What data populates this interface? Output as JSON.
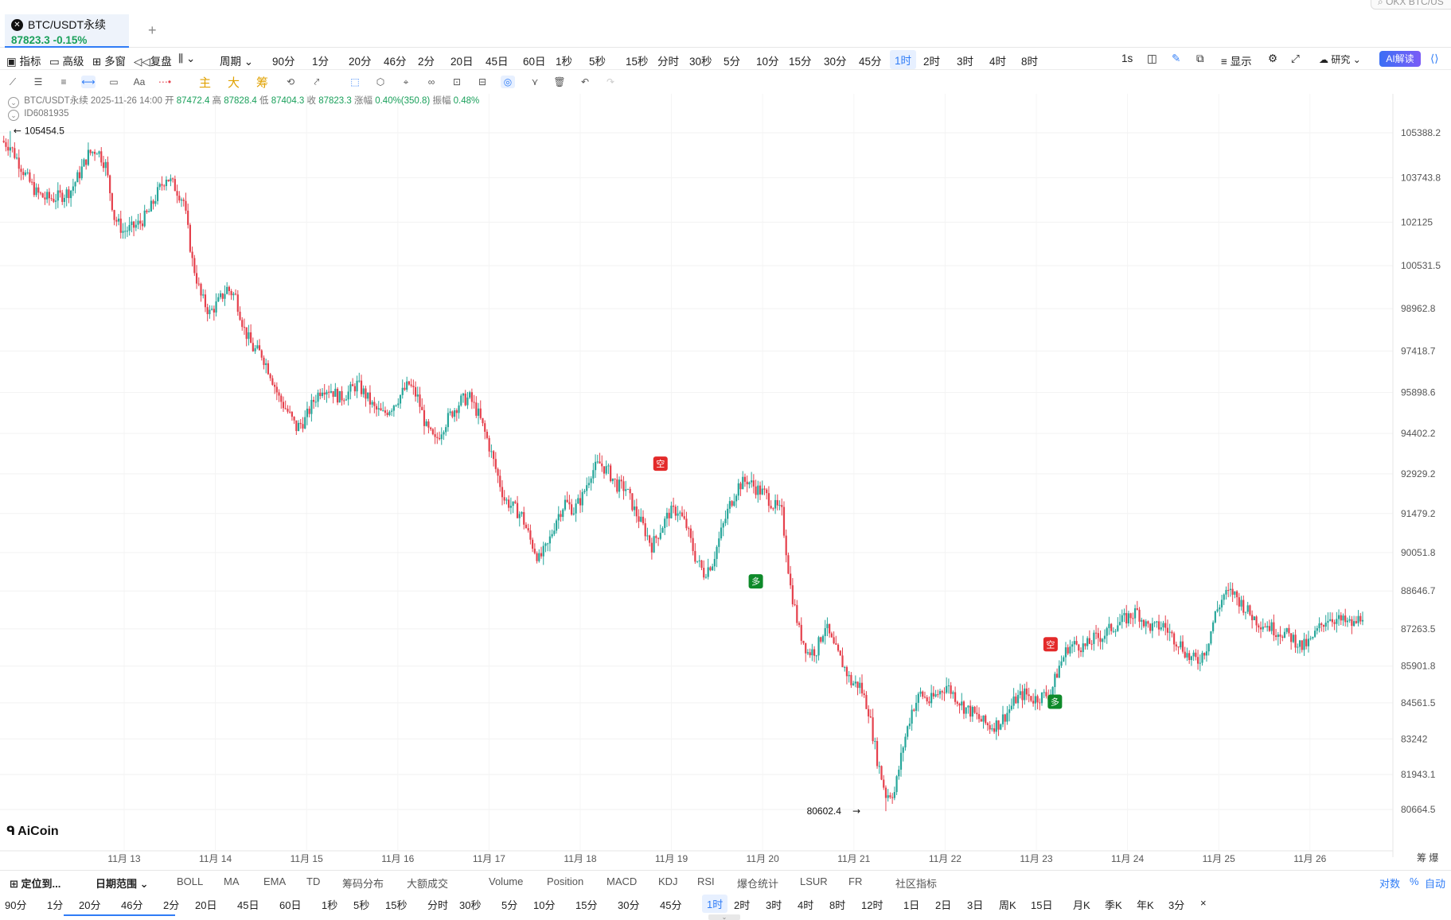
{
  "tab": {
    "symbol": "BTC/USDT永续",
    "price": "87823.3",
    "change": "-0.15%",
    "add": "+",
    "search_placeholder": "OKX BTC/US"
  },
  "toolbar1": {
    "items": [
      {
        "label": "指标"
      },
      {
        "label": "高级"
      },
      {
        "label": "多窗"
      },
      {
        "label": "复盘"
      },
      {
        "label": "周期"
      },
      {
        "label": "90分"
      },
      {
        "label": "1分"
      },
      {
        "label": "20分"
      },
      {
        "label": "46分"
      },
      {
        "label": "2分"
      },
      {
        "label": "20日"
      },
      {
        "label": "45日"
      },
      {
        "label": "60日"
      },
      {
        "label": "1秒"
      },
      {
        "label": "5秒"
      },
      {
        "label": "15秒"
      },
      {
        "label": "分时"
      },
      {
        "label": "30秒"
      },
      {
        "label": "5分"
      },
      {
        "label": "10分"
      },
      {
        "label": "15分"
      },
      {
        "label": "30分"
      },
      {
        "label": "45分"
      },
      {
        "label": "1时"
      },
      {
        "label": "2时"
      },
      {
        "label": "3时"
      },
      {
        "label": "4时"
      },
      {
        "label": "8时"
      }
    ],
    "active": "1时",
    "right": {
      "speed": "1s",
      "display": "显示",
      "research": "研究",
      "ai": "AI解读"
    }
  },
  "toolbar2": {
    "highlight": [
      "主",
      "大",
      "筹"
    ]
  },
  "ohlc": {
    "symbol": "BTC/USDT永续",
    "time": "2025-11-26 14:00",
    "open_label": "开",
    "open": "87472.4",
    "high_label": "高",
    "high": "87828.4",
    "low_label": "低",
    "low": "87404.3",
    "close_label": "收",
    "close": "87823.3",
    "chg_label": "涨幅",
    "chg": "0.40%(350.8)",
    "amp_label": "振幅",
    "amp": "0.48%",
    "id": "ID6081935"
  },
  "chart_data": {
    "type": "candlestick",
    "y_ticks": [
      105388.2,
      103743.8,
      102125.0,
      100531.5,
      98962.8,
      97418.7,
      95898.6,
      94402.2,
      92929.2,
      91479.2,
      90051.8,
      88646.7,
      87263.5,
      85901.8,
      84561.5,
      83242.0,
      81943.1,
      80664.5
    ],
    "x_ticks": [
      "11月 13",
      "11月 14",
      "11月 15",
      "11月 16",
      "11月 17",
      "11月 18",
      "11月 19",
      "11月 20",
      "11月 21",
      "11月 22",
      "11月 23",
      "11月 24",
      "11月 25",
      "11月 26"
    ],
    "high_label": "105454.5",
    "low_label": "80602.4",
    "high_value": 105454.5,
    "low_value": 80602.4,
    "close_path": [
      [
        0,
        105100
      ],
      [
        4,
        104900
      ],
      [
        8,
        104300
      ],
      [
        12,
        103700
      ],
      [
        16,
        103200
      ],
      [
        20,
        103000
      ],
      [
        24,
        103000
      ],
      [
        28,
        103100
      ],
      [
        32,
        103300
      ],
      [
        36,
        103900
      ],
      [
        40,
        104600
      ],
      [
        44,
        104800
      ],
      [
        48,
        104200
      ],
      [
        52,
        102300
      ],
      [
        56,
        101800
      ],
      [
        60,
        101900
      ],
      [
        64,
        102100
      ],
      [
        68,
        102500
      ],
      [
        72,
        103200
      ],
      [
        76,
        103800
      ],
      [
        80,
        103400
      ],
      [
        84,
        102900
      ],
      [
        88,
        100700
      ],
      [
        92,
        99400
      ],
      [
        96,
        98800
      ],
      [
        100,
        99200
      ],
      [
        104,
        99700
      ],
      [
        108,
        99400
      ],
      [
        112,
        98200
      ],
      [
        116,
        97500
      ],
      [
        120,
        97300
      ],
      [
        124,
        96600
      ],
      [
        128,
        95700
      ],
      [
        132,
        95200
      ],
      [
        136,
        94600
      ],
      [
        140,
        94900
      ],
      [
        144,
        95600
      ],
      [
        148,
        96100
      ],
      [
        152,
        96000
      ],
      [
        156,
        95700
      ],
      [
        160,
        95900
      ],
      [
        164,
        96200
      ],
      [
        168,
        95800
      ],
      [
        172,
        95300
      ],
      [
        176,
        95100
      ],
      [
        180,
        95400
      ],
      [
        184,
        95800
      ],
      [
        188,
        96200
      ],
      [
        192,
        95700
      ],
      [
        196,
        94600
      ],
      [
        200,
        94100
      ],
      [
        204,
        94700
      ],
      [
        208,
        95200
      ],
      [
        212,
        95600
      ],
      [
        216,
        95700
      ],
      [
        220,
        95100
      ],
      [
        224,
        94200
      ],
      [
        228,
        93100
      ],
      [
        232,
        92000
      ],
      [
        236,
        91700
      ],
      [
        240,
        91400
      ],
      [
        244,
        90500
      ],
      [
        248,
        89800
      ],
      [
        252,
        90300
      ],
      [
        256,
        91300
      ],
      [
        260,
        91900
      ],
      [
        264,
        91600
      ],
      [
        268,
        92100
      ],
      [
        272,
        93000
      ],
      [
        276,
        93300
      ],
      [
        280,
        93000
      ],
      [
        284,
        92500
      ],
      [
        288,
        92400
      ],
      [
        292,
        91600
      ],
      [
        296,
        91000
      ],
      [
        300,
        90300
      ],
      [
        304,
        90900
      ],
      [
        308,
        91500
      ],
      [
        312,
        91600
      ],
      [
        316,
        91000
      ],
      [
        320,
        89900
      ],
      [
        324,
        89300
      ],
      [
        328,
        89700
      ],
      [
        332,
        90800
      ],
      [
        336,
        91800
      ],
      [
        340,
        92500
      ],
      [
        344,
        92700
      ],
      [
        348,
        92400
      ],
      [
        352,
        92200
      ],
      [
        356,
        91800
      ],
      [
        360,
        91500
      ],
      [
        364,
        88800
      ],
      [
        368,
        87200
      ],
      [
        372,
        86400
      ],
      [
        376,
        86500
      ],
      [
        380,
        87400
      ],
      [
        384,
        86600
      ],
      [
        388,
        86000
      ],
      [
        392,
        85300
      ],
      [
        396,
        85200
      ],
      [
        400,
        84300
      ],
      [
        404,
        82500
      ],
      [
        408,
        81200
      ],
      [
        412,
        81300
      ],
      [
        416,
        83000
      ],
      [
        420,
        84300
      ],
      [
        424,
        84900
      ],
      [
        428,
        84600
      ],
      [
        432,
        84900
      ],
      [
        436,
        85200
      ],
      [
        440,
        84800
      ],
      [
        444,
        84400
      ],
      [
        448,
        84200
      ],
      [
        452,
        83900
      ],
      [
        456,
        83700
      ],
      [
        460,
        83800
      ],
      [
        464,
        84200
      ],
      [
        468,
        84700
      ],
      [
        472,
        84900
      ],
      [
        476,
        84700
      ],
      [
        480,
        84800
      ],
      [
        484,
        84900
      ],
      [
        488,
        85900
      ],
      [
        492,
        86600
      ],
      [
        496,
        86700
      ],
      [
        500,
        86600
      ],
      [
        504,
        86900
      ],
      [
        508,
        87000
      ],
      [
        512,
        87300
      ],
      [
        516,
        87500
      ],
      [
        520,
        87700
      ],
      [
        524,
        87900
      ],
      [
        528,
        87400
      ],
      [
        532,
        87300
      ],
      [
        536,
        87400
      ],
      [
        540,
        87000
      ],
      [
        544,
        86700
      ],
      [
        548,
        86200
      ],
      [
        552,
        86100
      ],
      [
        556,
        86600
      ],
      [
        560,
        87800
      ],
      [
        564,
        88500
      ],
      [
        568,
        88600
      ],
      [
        572,
        88200
      ],
      [
        576,
        87800
      ],
      [
        580,
        87500
      ],
      [
        584,
        87400
      ],
      [
        588,
        87200
      ],
      [
        592,
        87100
      ],
      [
        596,
        86900
      ],
      [
        600,
        86600
      ],
      [
        604,
        86800
      ],
      [
        608,
        87300
      ],
      [
        612,
        87700
      ],
      [
        616,
        87600
      ],
      [
        620,
        87500
      ],
      [
        624,
        87400
      ],
      [
        628,
        87823
      ]
    ],
    "signals": [
      {
        "label": "空",
        "side": "short",
        "t": 304,
        "price": 93300
      },
      {
        "label": "多",
        "side": "long",
        "t": 348,
        "price": 89000
      },
      {
        "label": "空",
        "side": "short",
        "t": 484,
        "price": 86700
      },
      {
        "label": "多",
        "side": "long",
        "t": 486,
        "price": 84600
      }
    ]
  },
  "chart_meta": {
    "logo": "AiCoin",
    "corner_labels": "筹 爆"
  },
  "bottom1": {
    "locate": "定位到...",
    "range": "日期范围",
    "indicators": [
      "BOLL",
      "MA",
      "EMA",
      "TD",
      "筹码分布",
      "大额成交",
      "Volume",
      "Position",
      "MACD",
      "KDJ",
      "RSI",
      "爆仓统计",
      "LSUR",
      "FR",
      "社区指标"
    ],
    "right": [
      "对数",
      "%",
      "自动"
    ]
  },
  "bottom2": {
    "items": [
      "90分",
      "1分",
      "20分",
      "46分",
      "2分",
      "20日",
      "45日",
      "60日",
      "1秒",
      "5秒",
      "15秒",
      "分时",
      "30秒",
      "5分",
      "10分",
      "15分",
      "30分",
      "45分",
      "1时",
      "2时",
      "3时",
      "4时",
      "8时",
      "12时",
      "1日",
      "2日",
      "3日",
      "周K",
      "15日",
      "月K",
      "季K",
      "年K",
      "3分",
      "×"
    ],
    "active": "1时"
  },
  "colors": {
    "up": "#26a69a",
    "down": "#e5404c",
    "accent": "#2f7cf6",
    "short_signal": "#e32a2a",
    "long_signal": "#0e8a2a"
  }
}
